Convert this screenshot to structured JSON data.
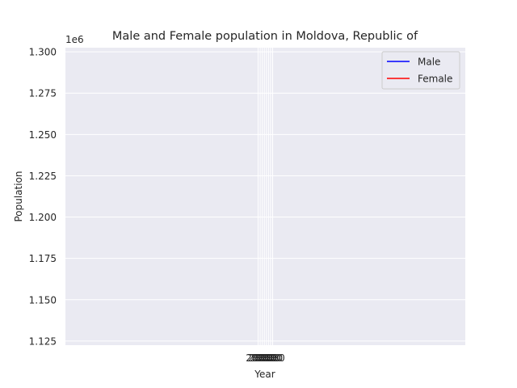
{
  "chart_data": {
    "type": "line",
    "title": "Male and Female population in Moldova, Republic of",
    "xlabel": "Year",
    "ylabel": "Population",
    "y_offset_label": "1e6",
    "ylim": [
      1122500,
      1302500
    ],
    "yticks": [
      1125000,
      1150000,
      1175000,
      1200000,
      1225000,
      1250000,
      1275000,
      1300000
    ],
    "ytick_labels": [
      "1.125",
      "1.150",
      "1.175",
      "1.200",
      "1.225",
      "1.250",
      "1.275",
      "1.300"
    ],
    "x_tick_label": "2020",
    "x_tick_count": 8,
    "grid": true,
    "legend_position": "top-right",
    "series": [
      {
        "name": "Male",
        "color": "#0000ff",
        "values": []
      },
      {
        "name": "Female",
        "color": "#ff0000",
        "values": []
      }
    ],
    "colors": {
      "plot_background": "#eaeaf2",
      "grid": "#ffffff",
      "text": "#262626"
    }
  }
}
